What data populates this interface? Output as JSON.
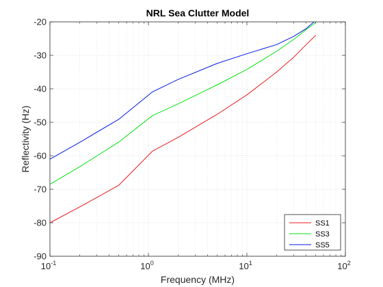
{
  "chart_data": {
    "type": "line",
    "title": "NRL Sea Clutter Model",
    "xlabel": "Frequency (MHz)",
    "ylabel": "Reflectivity (Hz)",
    "xscale": "log",
    "xlim": [
      0.1,
      100
    ],
    "ylim": [
      -90,
      -20
    ],
    "x_ticks": [
      {
        "value": 0.1,
        "base": "10",
        "exp": "-1"
      },
      {
        "value": 1,
        "base": "10",
        "exp": "0"
      },
      {
        "value": 10,
        "base": "10",
        "exp": "1"
      },
      {
        "value": 100,
        "base": "10",
        "exp": "2"
      }
    ],
    "y_ticks": [
      -90,
      -80,
      -70,
      -60,
      -50,
      -40,
      -30,
      -20
    ],
    "grid": true,
    "legend_position": "bottom-right",
    "series": [
      {
        "name": "SS1",
        "color": "#e8191b",
        "x": [
          0.1,
          0.2,
          0.5,
          1.1,
          2,
          5,
          10,
          20,
          30,
          40,
          50
        ],
        "y": [
          -80,
          -75.3,
          -68.8,
          -58.6,
          -54.5,
          -47.6,
          -41.8,
          -35.0,
          -30.5,
          -26.8,
          -24.0
        ]
      },
      {
        "name": "SS3",
        "color": "#00e012",
        "x": [
          0.1,
          0.2,
          0.5,
          1.1,
          2,
          5,
          10,
          20,
          30,
          40,
          50
        ],
        "y": [
          -68.5,
          -63.3,
          -55.9,
          -48.0,
          -44.5,
          -38.8,
          -34.2,
          -28.8,
          -25.2,
          -22.3,
          -20.2
        ]
      },
      {
        "name": "SS5",
        "color": "#0018e8",
        "x": [
          0.1,
          0.2,
          0.5,
          1.1,
          2,
          5,
          10,
          20,
          30,
          40,
          48
        ],
        "y": [
          -61,
          -56.0,
          -49.1,
          -40.9,
          -37.2,
          -32.4,
          -29.5,
          -26.8,
          -24.3,
          -22.0,
          -20.0
        ]
      }
    ]
  }
}
